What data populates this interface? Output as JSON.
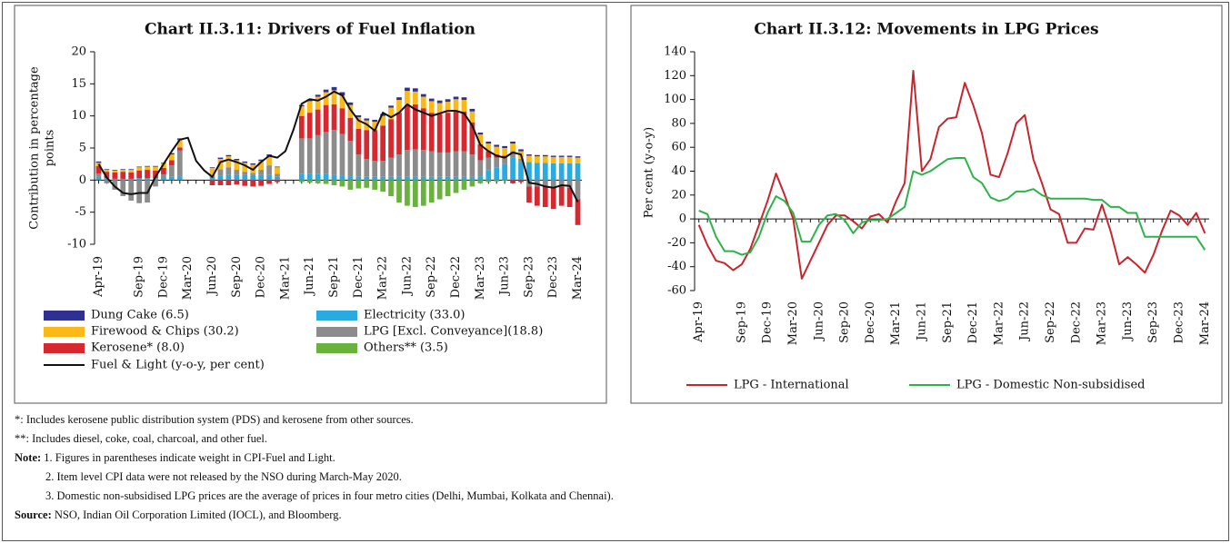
{
  "chart_data": [
    {
      "type": "bar",
      "stacked": true,
      "title": "Chart II.3.11: Drivers of Fuel Inflation",
      "y_label": [
        "Contribution in percentage",
        "points"
      ],
      "categories": [
        "Apr-19",
        null,
        null,
        null,
        null,
        "Sep-19",
        null,
        null,
        "Dec-19",
        null,
        null,
        "Mar-20",
        null,
        null,
        "Jun-20",
        null,
        null,
        "Sep-20",
        null,
        null,
        "Dec-20",
        null,
        null,
        "Mar-21",
        null,
        null,
        "Jun-21",
        null,
        null,
        "Sep-21",
        null,
        null,
        "Dec-21",
        null,
        null,
        "Mar-22",
        null,
        null,
        "Jun-22",
        null,
        null,
        "Sep-22",
        null,
        null,
        "Dec-22",
        null,
        null,
        "Mar-23",
        null,
        null,
        "Jun-23",
        null,
        null,
        "Sep-23",
        null,
        null,
        "Dec-23",
        null,
        null,
        "Mar-24"
      ],
      "ylim": [
        -10,
        20
      ],
      "yticks": [
        -10,
        -5,
        0,
        5,
        10,
        15,
        20
      ],
      "series": [
        {
          "name": "Dung Cake (6.5)",
          "color": "#2e3192",
          "values": [
            0.2,
            0.1,
            0.1,
            0.1,
            0.1,
            0.1,
            0.1,
            0.1,
            0.1,
            0.2,
            0.2,
            null,
            null,
            null,
            0.1,
            0.2,
            0.2,
            0.2,
            0.2,
            0.2,
            0.2,
            0.2,
            0.1,
            null,
            null,
            0.2,
            0.3,
            0.3,
            0.4,
            0.5,
            0.5,
            0.4,
            0.3,
            0.3,
            0.3,
            0.3,
            0.3,
            0.4,
            0.5,
            0.5,
            0.4,
            0.4,
            0.4,
            0.4,
            0.4,
            0.4,
            0.4,
            0.3,
            0.3,
            0.3,
            0.3,
            0.3,
            0.3,
            0.2,
            0.2,
            0.2,
            0.2,
            0.2,
            0.2,
            0.2
          ]
        },
        {
          "name": "Electricity (33.0)",
          "color": "#29abe2",
          "values": [
            0.5,
            0.3,
            0.2,
            0.2,
            0.2,
            0.3,
            0.3,
            0.3,
            0.4,
            0.5,
            0.6,
            null,
            null,
            null,
            0.5,
            0.7,
            0.8,
            0.8,
            0.8,
            0.8,
            0.8,
            0.8,
            0.5,
            null,
            null,
            1.0,
            1.0,
            1.0,
            1.0,
            0.8,
            0.7,
            0.6,
            0.5,
            0.5,
            0.5,
            0.5,
            0.5,
            0.5,
            0.5,
            0.5,
            0.5,
            0.5,
            0.5,
            0.5,
            0.5,
            0.5,
            0.5,
            0.6,
            1.5,
            2.0,
            2.5,
            3.5,
            2.8,
            2.8,
            2.7,
            2.7,
            2.6,
            2.6,
            2.6,
            2.6
          ]
        },
        {
          "name": "Firewood & Chips (30.2)",
          "color": "#fbb917",
          "values": [
            0.5,
            0.3,
            0.3,
            0.3,
            0.4,
            0.5,
            0.5,
            0.6,
            0.7,
            0.9,
            1.2,
            null,
            null,
            null,
            1.2,
            1.6,
            1.7,
            1.5,
            1.4,
            1.3,
            1.4,
            1.5,
            1.0,
            null,
            null,
            1.5,
            1.8,
            2.0,
            2.0,
            2.2,
            2.0,
            2.0,
            1.8,
            1.5,
            1.3,
            1.5,
            1.8,
            2.0,
            2.2,
            2.0,
            1.8,
            1.8,
            1.7,
            1.7,
            1.8,
            1.8,
            1.7,
            1.5,
            1.2,
            1.2,
            1.2,
            1.2,
            1.2,
            1.0,
            1.0,
            1.0,
            1.0,
            1.0,
            1.0,
            0.9
          ]
        },
        {
          "name": "LPG [Excl. Conveyance](18.8)",
          "color": "#8c8c8c",
          "values": [
            0.5,
            -0.5,
            -1.5,
            -2.5,
            -3.2,
            -3.6,
            -3.5,
            -1.0,
            0.5,
            1.8,
            4.0,
            null,
            null,
            null,
            0.2,
            1.0,
            1.2,
            0.8,
            0.5,
            0.3,
            0.8,
            1.5,
            0.5,
            null,
            null,
            5.5,
            5.5,
            6.0,
            6.5,
            7.0,
            6.5,
            5.5,
            3.5,
            2.8,
            2.5,
            2.5,
            3.0,
            3.5,
            4.2,
            4.3,
            4.2,
            4.0,
            3.8,
            3.8,
            4.0,
            4.0,
            3.5,
            2.5,
            2.0,
            1.5,
            1.0,
            1.0,
            0.5,
            -1.0,
            -1.0,
            -1.0,
            -1.2,
            -1.0,
            -1.2,
            -3.0
          ]
        },
        {
          "name": "Kerosene* (8.0)",
          "color": "#d7282f",
          "values": [
            1.2,
            1.0,
            1.0,
            1.1,
            1.0,
            1.2,
            1.3,
            1.2,
            1.0,
            0.8,
            0.5,
            null,
            null,
            null,
            -0.8,
            -0.8,
            -0.8,
            -0.7,
            -0.9,
            -1.0,
            -0.9,
            -0.6,
            -0.3,
            null,
            null,
            3.5,
            4.0,
            4.0,
            4.2,
            4.0,
            4.0,
            3.6,
            4.0,
            4.5,
            4.8,
            5.5,
            6.0,
            6.5,
            7.0,
            7.0,
            6.5,
            6.0,
            6.0,
            6.2,
            6.3,
            6.2,
            5.0,
            2.5,
            1.0,
            0.5,
            0.3,
            -0.5,
            -0.3,
            -2.5,
            -3.0,
            -3.2,
            -3.3,
            -3.0,
            -3.0,
            -4.0
          ]
        },
        {
          "name": "Others** (3.5)",
          "color": "#6ab23e",
          "values": [
            0,
            0,
            0,
            0,
            0,
            0,
            0,
            0,
            0,
            0,
            0,
            null,
            null,
            null,
            0,
            0,
            0,
            0,
            0,
            0,
            0,
            0,
            0,
            null,
            null,
            -0.3,
            -0.4,
            -0.5,
            -0.6,
            -0.8,
            -1.0,
            -1.5,
            -1.3,
            -1.2,
            -1.5,
            -1.8,
            -2.5,
            -3.5,
            -4.0,
            -4.2,
            -4.0,
            -3.5,
            -3.0,
            -2.5,
            -2.0,
            -1.5,
            -1.0,
            -0.5,
            -0.3,
            -0.2,
            -0.1,
            0,
            0,
            0,
            0,
            0,
            0,
            0,
            0,
            0
          ]
        },
        {
          "name": "Fuel & Light (y-o-y, per cent)",
          "type": "line",
          "color": "#111111",
          "values": [
            2.5,
            0.4,
            -1.0,
            -2.0,
            -2.2,
            -2.0,
            -2.0,
            0.5,
            2.5,
            4.5,
            6.3,
            6.6,
            3.0,
            1.5,
            0.5,
            2.8,
            3.2,
            2.8,
            2.3,
            1.6,
            2.8,
            3.8,
            3.5,
            4.5,
            7.9,
            11.9,
            12.6,
            12.4,
            13.0,
            13.8,
            13.2,
            11.0,
            9.3,
            8.7,
            7.7,
            10.5,
            9.8,
            10.5,
            11.8,
            11.0,
            10.5,
            10.0,
            10.4,
            10.8,
            10.8,
            10.4,
            8.5,
            5.5,
            4.5,
            3.8,
            3.5,
            4.3,
            4.0,
            -0.4,
            -0.6,
            -1.0,
            -1.2,
            -0.8,
            -0.9,
            -3.4
          ]
        }
      ]
    },
    {
      "type": "line",
      "title": "Chart II.3.12: Movements in LPG Prices",
      "y_label": "Per cent (y-o-y)",
      "categories": [
        "Apr-19",
        null,
        null,
        null,
        null,
        "Sep-19",
        null,
        null,
        "Dec-19",
        null,
        null,
        "Mar-20",
        null,
        null,
        "Jun-20",
        null,
        null,
        "Sep-20",
        null,
        null,
        "Dec-20",
        null,
        null,
        "Mar-21",
        null,
        null,
        "Jun-21",
        null,
        null,
        "Sep-21",
        null,
        null,
        "Dec-21",
        null,
        null,
        "Mar-22",
        null,
        null,
        "Jun-22",
        null,
        null,
        "Sep-22",
        null,
        null,
        "Dec-22",
        null,
        null,
        "Mar-23",
        null,
        null,
        "Jun-23",
        null,
        null,
        "Sep-23",
        null,
        null,
        "Dec-23",
        null,
        null,
        "Mar-24"
      ],
      "ylim": [
        -60,
        140
      ],
      "yticks": [
        -60,
        -40,
        -20,
        0,
        20,
        40,
        60,
        80,
        100,
        120,
        140
      ],
      "series": [
        {
          "name": "LPG - International",
          "color": "#c8252c",
          "values": [
            -5,
            -22,
            -35,
            -37,
            -43,
            -38,
            -25,
            -5,
            15,
            38,
            20,
            0,
            -50,
            -35,
            -20,
            -5,
            3,
            3,
            -2,
            -8,
            2,
            4,
            -3,
            15,
            30,
            124,
            40,
            50,
            77,
            84,
            85,
            114,
            95,
            72,
            37,
            35,
            55,
            80,
            87,
            50,
            30,
            8,
            4,
            -20,
            -20,
            -8,
            -9,
            12,
            -10,
            -38,
            -32,
            -38,
            -45,
            -30,
            -10,
            7,
            3,
            -5,
            5,
            -12
          ]
        },
        {
          "name": "LPG - Domestic Non-subsidised",
          "color": "#2db34a",
          "values": [
            7,
            4,
            -15,
            -27,
            -27,
            -30,
            -28,
            -15,
            5,
            19,
            15,
            5,
            -19,
            -19,
            -5,
            3,
            4,
            -1,
            -12,
            -3,
            -1,
            -1,
            0,
            5,
            10,
            40,
            37,
            40,
            45,
            50,
            51,
            51,
            35,
            30,
            18,
            15,
            17,
            23,
            23,
            25,
            20,
            17,
            17,
            17,
            17,
            17,
            16,
            16,
            10,
            10,
            5,
            5,
            -15,
            -15,
            -15,
            -15,
            -15,
            -15,
            -15,
            -26
          ]
        }
      ]
    }
  ],
  "footnotes": [
    "*: Includes kerosene public distribution system (PDS) and kerosene from other sources.",
    "**: Includes diesel, coke, coal, charcoal, and other fuel."
  ],
  "note": {
    "label": "Note:",
    "items": [
      "1. Figures in parentheses indicate weight in CPI-Fuel and Light.",
      "2. Item level CPI data were not released by the NSO during March-May 2020.",
      "3. Domestic non-subsidised LPG prices are the average of prices in four metro cities (Delhi, Mumbai, Kolkata and Chennai)."
    ]
  },
  "source": {
    "label": "Source:",
    "text": "NSO, Indian Oil Corporation Limited (IOCL), and Bloomberg."
  }
}
